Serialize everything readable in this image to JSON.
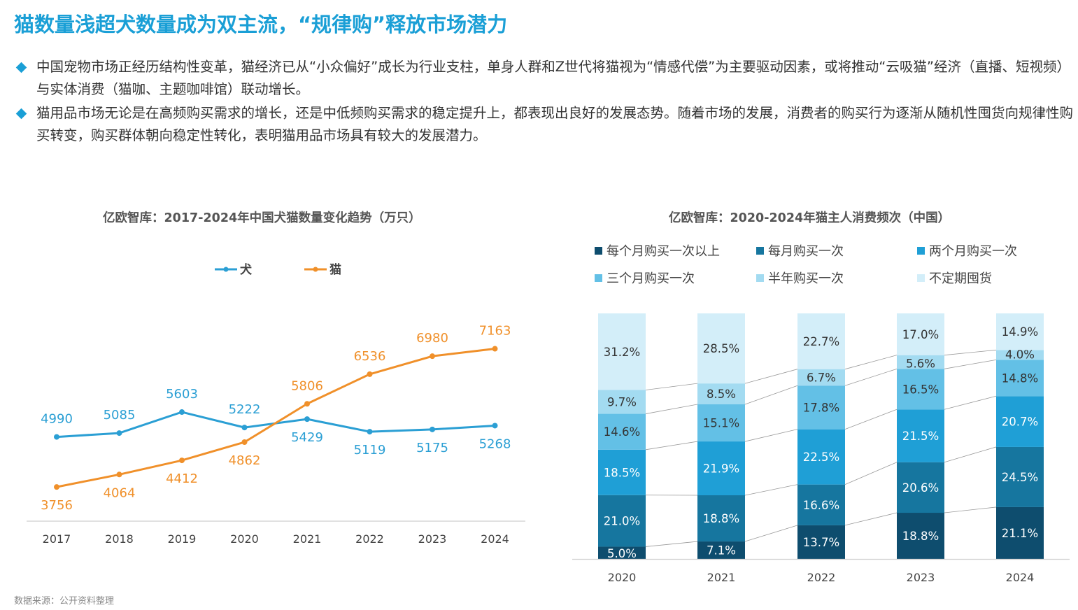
{
  "title": "猫数量浅超犬数量成为双主流，“规律购”释放市场潜力",
  "bullets": [
    "中国宠物市场正经历结构性变革，猫经济已从“小众偏好”成长为行业支柱，单身人群和Z世代将猫视为“情感代偿”为主要驱动因素，或将推动“云吸猫”经济（直播、短视频）与实体消费（猫咖、主题咖啡馆）联动增长。",
    "猫用品市场无论是在高频购买需求的增长，还是中低频购买需求的稳定提升上，都表现出良好的发展态势。随着市场的发展，消费者的购买行为逐渐从随机性囤货向规律性购买转变，购买群体朝向稳定性转化，表明猫用品市场具有较大的发展潜力。"
  ],
  "source": "数据来源：公开资料整理",
  "colors": {
    "accent": "#1a9fd6",
    "dog": "#2b9fd4",
    "cat": "#f0902a",
    "stack": [
      "#0e4d6e",
      "#16769f",
      "#1f9fd6",
      "#63c0e6",
      "#a3dbf1",
      "#d3eef9"
    ]
  },
  "chart_data": [
    {
      "type": "line",
      "title": "亿欧智库：2017-2024年中国犬猫数量变化趋势（万只）",
      "categories": [
        "2017",
        "2018",
        "2019",
        "2020",
        "2021",
        "2022",
        "2023",
        "2024"
      ],
      "series": [
        {
          "name": "犬",
          "values": [
            4990,
            5085,
            5603,
            5222,
            5429,
            5119,
            5175,
            5268
          ]
        },
        {
          "name": "猫",
          "values": [
            3756,
            4064,
            4412,
            4862,
            5806,
            6536,
            6980,
            7163
          ]
        }
      ],
      "ylim": [
        3000,
        8000
      ],
      "legend": "top-center",
      "grid": false
    },
    {
      "type": "bar",
      "stacked": true,
      "title": "亿欧智库：2020-2024年猫主人消费频次（中国）",
      "categories": [
        "2020",
        "2021",
        "2022",
        "2023",
        "2024"
      ],
      "series": [
        {
          "name": "每个月购买一次以上",
          "values": [
            5.0,
            7.1,
            13.7,
            18.8,
            21.1
          ]
        },
        {
          "name": "每月购买一次",
          "values": [
            21.0,
            18.8,
            16.6,
            20.6,
            24.5
          ]
        },
        {
          "name": "两个月购买一次",
          "values": [
            18.5,
            21.9,
            22.5,
            21.5,
            20.7
          ]
        },
        {
          "name": "三个月购买一次",
          "values": [
            14.6,
            15.1,
            17.8,
            16.5,
            14.8
          ]
        },
        {
          "name": "半年购买一次",
          "values": [
            9.7,
            8.5,
            6.7,
            5.6,
            4.0
          ]
        },
        {
          "name": "不定期囤货",
          "values": [
            31.2,
            28.5,
            22.7,
            17.0,
            14.9
          ]
        }
      ],
      "ylim": [
        0,
        100
      ],
      "legend": "top"
    }
  ]
}
